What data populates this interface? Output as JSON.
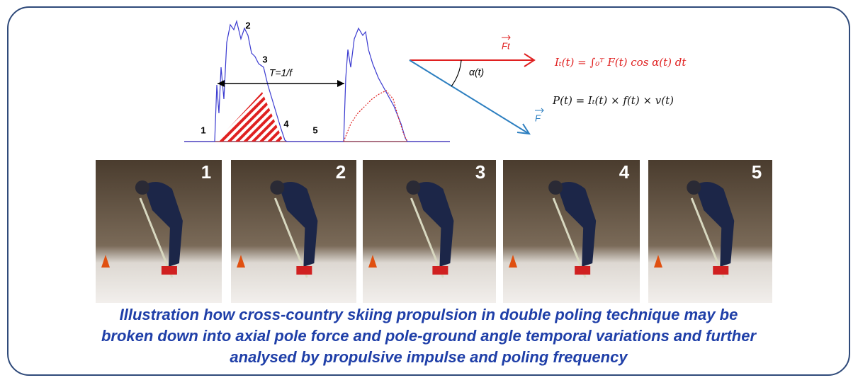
{
  "diagram": {
    "phase_labels": [
      "1",
      "2",
      "3",
      "4",
      "5"
    ],
    "period_label": "T=1/f",
    "angle_label": "α(t)",
    "vector_labels": {
      "tangential": "Ft",
      "force": "F"
    },
    "equations": [
      "Iₜ(t) = ∫₀ᵀ F(t) cos α(t) dt",
      "P(t) = Iₜ(t) × f(t) × v(t)"
    ],
    "photo_labels": [
      "1",
      "2",
      "3",
      "4",
      "5"
    ],
    "caption": [
      "Illustration how cross-country skiing propulsion in double poling technique may be",
      "broken down into axial pole force and pole-ground angle temporal variations and further",
      "analysed by propulsive impulse and poling frequency"
    ]
  }
}
